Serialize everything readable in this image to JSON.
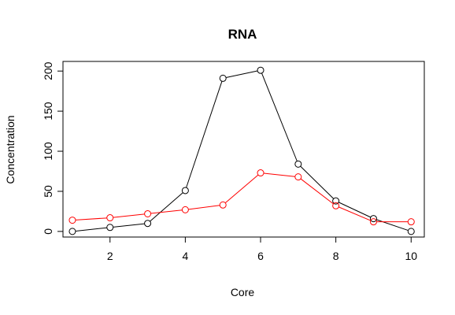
{
  "chart_data": {
    "type": "line",
    "title": "RNA",
    "xlabel": "Core",
    "ylabel": "Concentration",
    "xlim": [
      0.75,
      10.35
    ],
    "ylim": [
      -7,
      212
    ],
    "x_ticks": [
      2,
      4,
      6,
      8,
      10
    ],
    "y_ticks": [
      0,
      50,
      100,
      150,
      200
    ],
    "grid": false,
    "legend": "none",
    "x": [
      1,
      2,
      3,
      4,
      5,
      6,
      7,
      8,
      9,
      10
    ],
    "series": [
      {
        "color": "#000000",
        "values": [
          0,
          5,
          10,
          51,
          191,
          201,
          84,
          38,
          16,
          0
        ]
      },
      {
        "color": "#ff0000",
        "values": [
          14,
          17,
          22,
          27,
          33,
          73,
          68,
          32,
          12,
          12
        ]
      }
    ]
  }
}
